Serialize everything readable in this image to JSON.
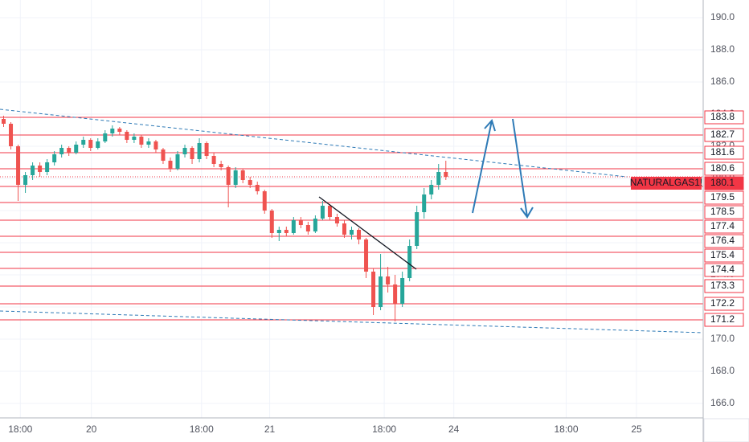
{
  "chart_data": {
    "type": "candlestick",
    "symbol": "NATURALGAS1!",
    "x": [
      0,
      1,
      2,
      3,
      4,
      5,
      6,
      7,
      8,
      9,
      10,
      11,
      12,
      13,
      14,
      15,
      16,
      17,
      18,
      19,
      20,
      21,
      22,
      23,
      24,
      25,
      26,
      27,
      28,
      29,
      30,
      31,
      32,
      33,
      34,
      35,
      36,
      37,
      38,
      39,
      40,
      41,
      42,
      43,
      44,
      45,
      46,
      47,
      48,
      49,
      50,
      51,
      52,
      53,
      54,
      55,
      56,
      57,
      58,
      59,
      60,
      61
    ],
    "open": [
      183.7,
      183.4,
      182.0,
      179.6,
      180.2,
      180.8,
      180.4,
      181.0,
      181.5,
      181.9,
      181.6,
      182.1,
      182.4,
      181.9,
      182.3,
      182.8,
      183.1,
      182.9,
      182.4,
      182.6,
      182.1,
      182.3,
      181.8,
      181.1,
      180.6,
      181.5,
      181.9,
      181.2,
      182.2,
      181.4,
      180.9,
      180.7,
      179.6,
      180.5,
      179.9,
      179.6,
      179.2,
      178.0,
      176.6,
      176.8,
      176.6,
      177.4,
      177.1,
      176.7,
      177.5,
      178.3,
      177.6,
      177.2,
      176.5,
      176.8,
      176.2,
      174.2,
      172.0,
      173.9,
      173.4,
      172.2,
      173.8,
      175.8,
      177.9,
      179.0,
      179.6,
      180.4
    ],
    "high": [
      183.9,
      183.5,
      182.1,
      180.4,
      181.0,
      181.0,
      181.2,
      181.7,
      182.1,
      182.0,
      182.3,
      182.6,
      182.5,
      182.5,
      183.0,
      183.3,
      183.2,
      183.0,
      182.8,
      182.7,
      182.5,
      182.4,
      181.9,
      181.3,
      181.7,
      182.1,
      182.0,
      182.5,
      182.3,
      181.6,
      181.1,
      180.8,
      180.7,
      180.6,
      180.1,
      179.8,
      179.3,
      178.1,
      177.0,
      177.0,
      177.6,
      177.6,
      177.3,
      177.7,
      178.6,
      178.4,
      177.8,
      177.4,
      177.0,
      176.9,
      176.3,
      174.4,
      175.3,
      174.5,
      174.0,
      174.2,
      176.2,
      178.3,
      179.4,
      179.9,
      180.9,
      181.1
    ],
    "low": [
      183.2,
      181.8,
      178.6,
      179.1,
      179.9,
      180.1,
      180.2,
      180.8,
      181.3,
      181.4,
      181.5,
      181.9,
      181.7,
      181.8,
      182.2,
      182.6,
      182.7,
      182.2,
      182.2,
      181.9,
      181.9,
      181.6,
      180.9,
      180.4,
      180.5,
      181.3,
      180.9,
      181.0,
      181.2,
      180.7,
      180.5,
      178.2,
      179.4,
      179.7,
      179.4,
      179.0,
      177.8,
      176.3,
      176.1,
      176.4,
      176.5,
      176.9,
      176.5,
      176.6,
      177.4,
      177.4,
      177.0,
      176.3,
      176.2,
      175.9,
      173.8,
      171.5,
      171.8,
      172.9,
      171.1,
      172.0,
      173.6,
      175.6,
      177.5,
      178.7,
      179.3,
      179.9
    ],
    "close": [
      183.4,
      182.0,
      179.6,
      180.2,
      180.8,
      180.4,
      181.0,
      181.5,
      181.9,
      181.6,
      182.1,
      182.4,
      181.9,
      182.3,
      182.8,
      183.1,
      182.9,
      182.4,
      182.6,
      182.1,
      182.3,
      181.8,
      181.1,
      180.6,
      181.5,
      181.9,
      181.2,
      182.2,
      181.4,
      180.9,
      180.7,
      179.6,
      180.5,
      179.9,
      179.6,
      179.2,
      178.0,
      176.6,
      176.8,
      176.6,
      177.4,
      177.1,
      176.7,
      177.5,
      178.3,
      177.6,
      177.2,
      176.5,
      176.8,
      176.2,
      174.2,
      172.0,
      173.9,
      173.4,
      172.2,
      173.8,
      175.8,
      177.9,
      179.0,
      179.6,
      180.4,
      180.1
    ],
    "up_color": "#26a69a",
    "down_color": "#ef5350",
    "xlim": [
      -0.5,
      96.5
    ],
    "xticks": [
      {
        "value": 2.3,
        "label": "18:00"
      },
      {
        "value": 12.1,
        "label": "20"
      },
      {
        "value": 27.3,
        "label": "18:00"
      },
      {
        "value": 36.7,
        "label": "21"
      },
      {
        "value": 52.5,
        "label": "18:00"
      },
      {
        "value": 62.1,
        "label": "24"
      },
      {
        "value": 77.6,
        "label": "18:00"
      },
      {
        "value": 87.3,
        "label": "25"
      }
    ],
    "ylim": [
      165.1,
      191.1
    ],
    "yticks": [
      {
        "value": 166,
        "label": "166.0"
      },
      {
        "value": 168,
        "label": "168.0"
      },
      {
        "value": 170,
        "label": "170.0"
      },
      {
        "value": 172,
        "label": "172.0"
      },
      {
        "value": 174,
        "label": "174.0"
      },
      {
        "value": 176,
        "label": "176.0"
      },
      {
        "value": 178,
        "label": "178.0"
      },
      {
        "value": 180,
        "label": "180.0"
      },
      {
        "value": 182,
        "label": "182.0"
      },
      {
        "value": 184,
        "label": "184.0"
      },
      {
        "value": 186,
        "label": "186.0"
      },
      {
        "value": 188,
        "label": "188.0"
      },
      {
        "value": 190,
        "label": "190.0"
      }
    ],
    "levels": [
      183.8,
      182.7,
      181.6,
      180.6,
      179.5,
      178.5,
      177.4,
      176.4,
      175.4,
      174.4,
      173.3,
      172.2,
      171.2
    ],
    "level_color": "#f23645",
    "last_price": 180.1,
    "grid": true
  }
}
